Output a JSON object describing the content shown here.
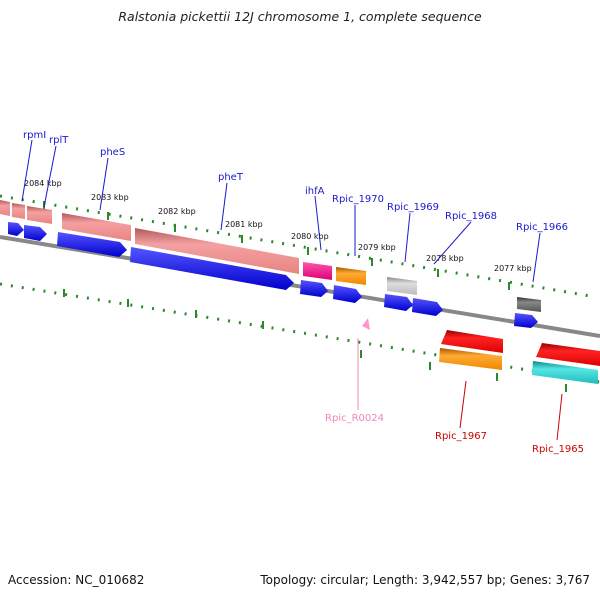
{
  "title": "Ralstonia pickettii 12J chromosome 1, complete sequence",
  "footer": {
    "accession": "Accession: NC_010682",
    "topology": "Topology: circular; Length: 3,942,557 bp; Genes: 3,767"
  },
  "scale_labels": [
    "2084 kbp",
    "2083 kbp",
    "2082 kbp",
    "2081 kbp",
    "2080 kbp",
    "2079 kbp",
    "2078 kbp",
    "2077 kbp"
  ],
  "gene_labels": {
    "forward": [
      "rpmI",
      "rplT",
      "pheS",
      "pheT",
      "ihfA",
      "Rpic_1970",
      "Rpic_1969",
      "Rpic_1968",
      "Rpic_1966"
    ],
    "reverse": [
      "Rpic_R0024",
      "Rpic_1967",
      "Rpic_1965"
    ]
  },
  "colors": {
    "label_forward": "#1a1acc",
    "label_reverse": "#cc0000",
    "label_rna": "#ee88bb",
    "cds_blue": "#0a0aee",
    "rrna_salmon": "#e88a8a",
    "pink": "#ff1493",
    "orange": "#ff8c00",
    "grey": "#b8b8b8",
    "dark_grey": "#666666",
    "red": "#ee0000",
    "cyan": "#22cccc",
    "tick_green": "#2a8a2a",
    "backbone": "#888888"
  }
}
